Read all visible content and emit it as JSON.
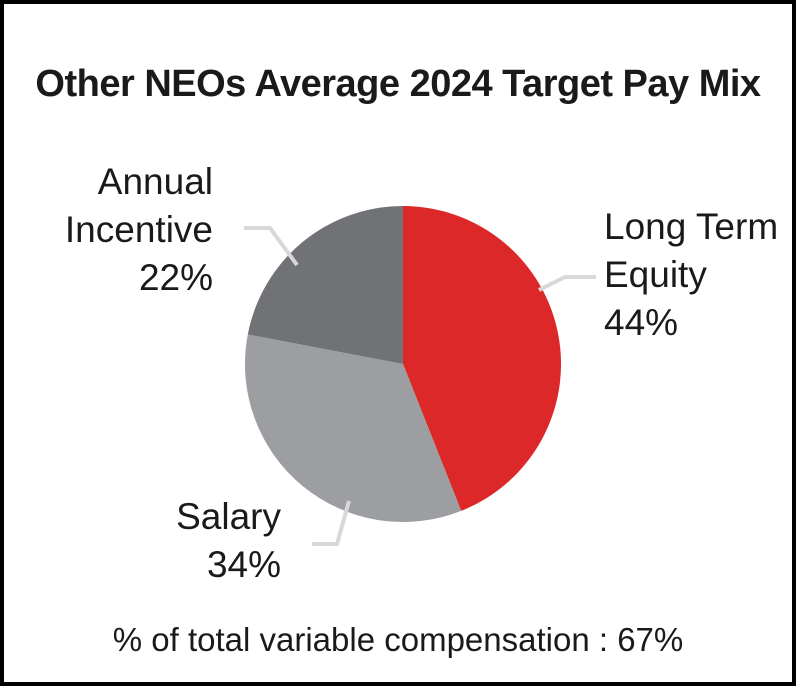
{
  "colors": {
    "background": "#ffffff",
    "frame_border": "#000000",
    "text": "#1a1a1a",
    "leader_line": "#d8d8d8"
  },
  "chart_data": {
    "type": "pie",
    "title": "Other NEOs Average 2024 Target Pay Mix",
    "start_angle_deg": 0,
    "direction": "clockwise",
    "legend_position": "none",
    "slices": [
      {
        "label": "Long Term Equity",
        "value": 44,
        "pct_label": "44%",
        "color": "#dc2828",
        "label_lines": [
          "Long Term",
          "Equity",
          "44%"
        ],
        "label_side": "right"
      },
      {
        "label": "Salary",
        "value": 34,
        "pct_label": "34%",
        "color": "#9c9ea1",
        "label_lines": [
          "Salary",
          "34%"
        ],
        "label_side": "bottom-left"
      },
      {
        "label": "Annual Incentive",
        "value": 22,
        "pct_label": "22%",
        "color": "#707275",
        "label_lines": [
          "Annual",
          "Incentive",
          "22%"
        ],
        "label_side": "top-left"
      }
    ],
    "annotation": "% of total variable compensation : 67%"
  }
}
